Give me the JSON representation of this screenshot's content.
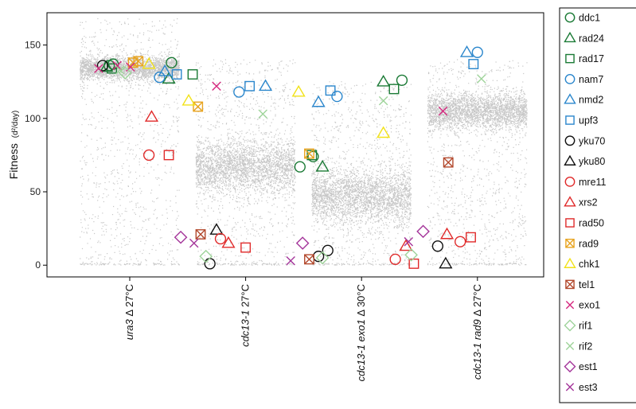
{
  "chart_data": {
    "type": "scatter",
    "ylabel": {
      "main": "Fitness",
      "sub": "(d²/day)"
    },
    "ylim": [
      -8,
      172
    ],
    "yticks": [
      0,
      50,
      100,
      150
    ],
    "categories": [
      {
        "parts": [
          {
            "t": "ura3",
            "i": true
          },
          {
            "t": " Δ  27°C",
            "i": false
          }
        ]
      },
      {
        "parts": [
          {
            "t": "cdc13-1",
            "i": true
          },
          {
            "t": " 27°C",
            "i": false
          }
        ]
      },
      {
        "parts": [
          {
            "t": "cdc13-1 exo1",
            "i": true
          },
          {
            "t": " Δ  30°C",
            "i": false
          }
        ]
      },
      {
        "parts": [
          {
            "t": "cdc13-1 rad9",
            "i": true
          },
          {
            "t": " Δ  27°C",
            "i": false
          }
        ]
      }
    ],
    "background_cloud": [
      {
        "center": 134,
        "sd": 4,
        "tail_min": 0,
        "tail_max": 168
      },
      {
        "center": 67,
        "sd": 9,
        "tail_min": 0,
        "tail_max": 140
      },
      {
        "center": 47,
        "sd": 9,
        "tail_min": 0,
        "tail_max": 125
      },
      {
        "center": 105,
        "sd": 6,
        "tail_min": 0,
        "tail_max": 140
      }
    ],
    "series": [
      {
        "name": "ddc1",
        "marker": "circle",
        "color": "#1a7a35",
        "points": [
          [
            0.94,
            136
          ],
          [
            1.0,
            137
          ],
          [
            1.88,
            138
          ],
          [
            3.82,
            67
          ],
          [
            4.02,
            74
          ],
          [
            5.36,
            126
          ]
        ]
      },
      {
        "name": "rad24",
        "marker": "triangle",
        "color": "#1a7a35",
        "points": [
          [
            0.9,
            135
          ],
          [
            1.84,
            127
          ],
          [
            4.16,
            67
          ],
          [
            5.08,
            125
          ]
        ]
      },
      {
        "name": "rad17",
        "marker": "square",
        "color": "#1a7a35",
        "points": [
          [
            0.98,
            134
          ],
          [
            2.2,
            130
          ],
          [
            4.0,
            75
          ],
          [
            5.24,
            120
          ]
        ]
      },
      {
        "name": "nam7",
        "marker": "circle",
        "color": "#2a86cc",
        "points": [
          [
            1.7,
            128
          ],
          [
            2.9,
            118
          ],
          [
            4.38,
            115
          ],
          [
            6.5,
            145
          ]
        ]
      },
      {
        "name": "nmd2",
        "marker": "triangle",
        "color": "#2a86cc",
        "points": [
          [
            1.78,
            132
          ],
          [
            3.3,
            122
          ],
          [
            4.1,
            111
          ],
          [
            6.34,
            145
          ]
        ]
      },
      {
        "name": "upf3",
        "marker": "square",
        "color": "#2a86cc",
        "points": [
          [
            1.96,
            130
          ],
          [
            3.06,
            122
          ],
          [
            4.28,
            119
          ],
          [
            6.44,
            137
          ]
        ]
      },
      {
        "name": "yku70",
        "marker": "circle",
        "color": "#111111",
        "points": [
          [
            0.84,
            136
          ],
          [
            2.46,
            1
          ],
          [
            4.1,
            6
          ],
          [
            4.24,
            10
          ],
          [
            5.9,
            13
          ]
        ]
      },
      {
        "name": "yku80",
        "marker": "triangle",
        "color": "#111111",
        "points": [
          [
            2.56,
            24
          ],
          [
            6.02,
            1
          ]
        ]
      },
      {
        "name": "mre11",
        "marker": "circle",
        "color": "#e02a2a",
        "points": [
          [
            1.54,
            75
          ],
          [
            2.62,
            18
          ],
          [
            5.26,
            4
          ],
          [
            6.24,
            16
          ]
        ]
      },
      {
        "name": "xrs2",
        "marker": "triangle",
        "color": "#e02a2a",
        "points": [
          [
            1.58,
            101
          ],
          [
            2.74,
            15
          ],
          [
            5.42,
            13
          ],
          [
            6.04,
            21
          ]
        ]
      },
      {
        "name": "rad50",
        "marker": "square",
        "color": "#e02a2a",
        "points": [
          [
            1.84,
            75
          ],
          [
            3.0,
            12
          ],
          [
            5.54,
            1
          ],
          [
            6.4,
            19
          ]
        ]
      },
      {
        "name": "rad9",
        "marker": "square-x",
        "color": "#e8a420",
        "points": [
          [
            1.3,
            138
          ],
          [
            1.38,
            139
          ],
          [
            2.28,
            108
          ],
          [
            3.96,
            76
          ]
        ]
      },
      {
        "name": "chk1",
        "marker": "triangle",
        "color": "#f2e218",
        "points": [
          [
            1.54,
            137
          ],
          [
            2.14,
            112
          ],
          [
            3.8,
            118
          ],
          [
            5.08,
            90
          ]
        ]
      },
      {
        "name": "tel1",
        "marker": "square-x",
        "color": "#b34a2e",
        "points": [
          [
            2.32,
            21
          ],
          [
            3.96,
            4
          ],
          [
            6.06,
            70
          ]
        ]
      },
      {
        "name": "exo1",
        "marker": "x",
        "color": "#d6287f",
        "points": [
          [
            0.78,
            134
          ],
          [
            1.06,
            136
          ],
          [
            1.26,
            135
          ],
          [
            2.56,
            122
          ],
          [
            5.98,
            105
          ]
        ]
      },
      {
        "name": "rif1",
        "marker": "diamond",
        "color": "#9ed39a",
        "points": [
          [
            1.18,
            131
          ],
          [
            2.4,
            6
          ],
          [
            4.16,
            5
          ],
          [
            5.5,
            7
          ]
        ]
      },
      {
        "name": "rif2",
        "marker": "x",
        "color": "#9ed39a",
        "points": [
          [
            1.1,
            133
          ],
          [
            3.26,
            103
          ],
          [
            5.08,
            112
          ],
          [
            6.56,
            127
          ]
        ]
      },
      {
        "name": "est1",
        "marker": "diamond",
        "color": "#a4359a",
        "points": [
          [
            2.02,
            19
          ],
          [
            3.86,
            15
          ],
          [
            5.68,
            23
          ]
        ]
      },
      {
        "name": "est3",
        "marker": "x",
        "color": "#a4359a",
        "points": [
          [
            2.22,
            15
          ],
          [
            3.68,
            3
          ],
          [
            5.46,
            16
          ]
        ]
      }
    ]
  }
}
